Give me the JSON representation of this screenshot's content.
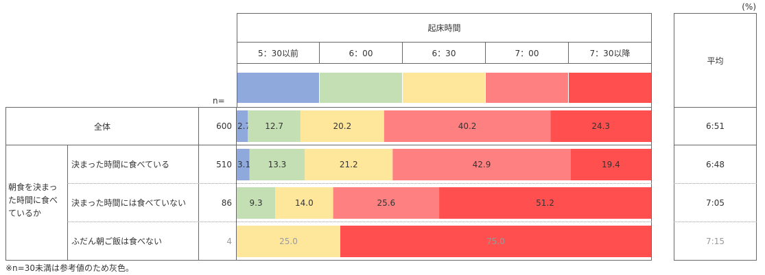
{
  "unit_note": "(%)",
  "header": {
    "group_title": "起床時間",
    "avg_title": "平均",
    "n_label": "n="
  },
  "left": {
    "group_label": "朝食を決まった時間に食べているか"
  },
  "footnote": "※n=30未満は参考値のため灰色。",
  "colors": [
    "#8fa9dc",
    "#c5dfb4",
    "#fee69a",
    "#ff8080",
    "#ff4f4f"
  ],
  "muted_color": "#9a9a9a",
  "chart_data": {
    "type": "bar",
    "stacked": true,
    "orientation": "horizontal",
    "xlim": [
      0,
      100
    ],
    "categories": [
      "5：30以前",
      "6：00",
      "6：30",
      "7：00",
      "7：30以降"
    ],
    "rows": [
      {
        "label": "全体",
        "n": "600",
        "values": [
          2.7,
          12.7,
          20.2,
          40.2,
          24.3
        ],
        "labels": [
          "2.7",
          "12.7",
          "20.2",
          "40.2",
          "24.3"
        ],
        "avg": "6:51",
        "muted": false
      },
      {
        "label": "決まった時間に食べている",
        "n": "510",
        "values": [
          3.1,
          13.3,
          21.2,
          42.9,
          19.4
        ],
        "labels": [
          "3.1",
          "13.3",
          "21.2",
          "42.9",
          "19.4"
        ],
        "avg": "6:48",
        "muted": false
      },
      {
        "label": "決まった時間には食べていない",
        "n": "86",
        "values": [
          0,
          9.3,
          14.0,
          25.6,
          51.2
        ],
        "labels": [
          "",
          "9.3",
          "14.0",
          "25.6",
          "51.2"
        ],
        "avg": "7:05",
        "muted": false
      },
      {
        "label": "ふだん朝ご飯は食べない",
        "n": "4",
        "values": [
          0,
          0,
          25.0,
          0,
          75.0
        ],
        "labels": [
          "",
          "",
          "25.0",
          "",
          "75.0"
        ],
        "avg": "7:15",
        "muted": true
      }
    ]
  }
}
